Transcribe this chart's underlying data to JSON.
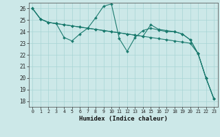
{
  "xlabel": "Humidex (Indice chaleur)",
  "bg_color": "#cce8e8",
  "grid_color": "#a8d4d4",
  "line_color": "#1a7a6e",
  "xlim": [
    -0.5,
    23.5
  ],
  "ylim": [
    17.5,
    26.5
  ],
  "xticks": [
    0,
    1,
    2,
    3,
    4,
    5,
    6,
    7,
    8,
    9,
    10,
    11,
    12,
    13,
    14,
    15,
    16,
    17,
    18,
    19,
    20,
    21,
    22,
    23
  ],
  "yticks": [
    18,
    19,
    20,
    21,
    22,
    23,
    24,
    25,
    26
  ],
  "series": [
    [
      26.0,
      25.1,
      24.8,
      24.7,
      24.6,
      24.5,
      24.4,
      24.3,
      24.2,
      24.1,
      24.0,
      23.9,
      23.8,
      23.7,
      23.6,
      23.5,
      23.4,
      23.3,
      23.2,
      23.1,
      23.0,
      22.1,
      20.0,
      18.2
    ],
    [
      26.0,
      25.1,
      24.8,
      24.7,
      23.5,
      23.2,
      23.8,
      24.3,
      25.2,
      26.2,
      26.4,
      23.4,
      22.3,
      23.5,
      24.1,
      24.3,
      24.15,
      24.0,
      24.0,
      23.8,
      23.3,
      22.1,
      20.0,
      18.2
    ],
    [
      26.0,
      25.1,
      24.8,
      24.7,
      24.6,
      24.5,
      24.4,
      24.3,
      24.2,
      24.1,
      24.0,
      23.9,
      23.8,
      23.7,
      23.6,
      24.6,
      24.2,
      24.1,
      24.0,
      23.8,
      23.3,
      22.1,
      20.0,
      18.2
    ]
  ]
}
